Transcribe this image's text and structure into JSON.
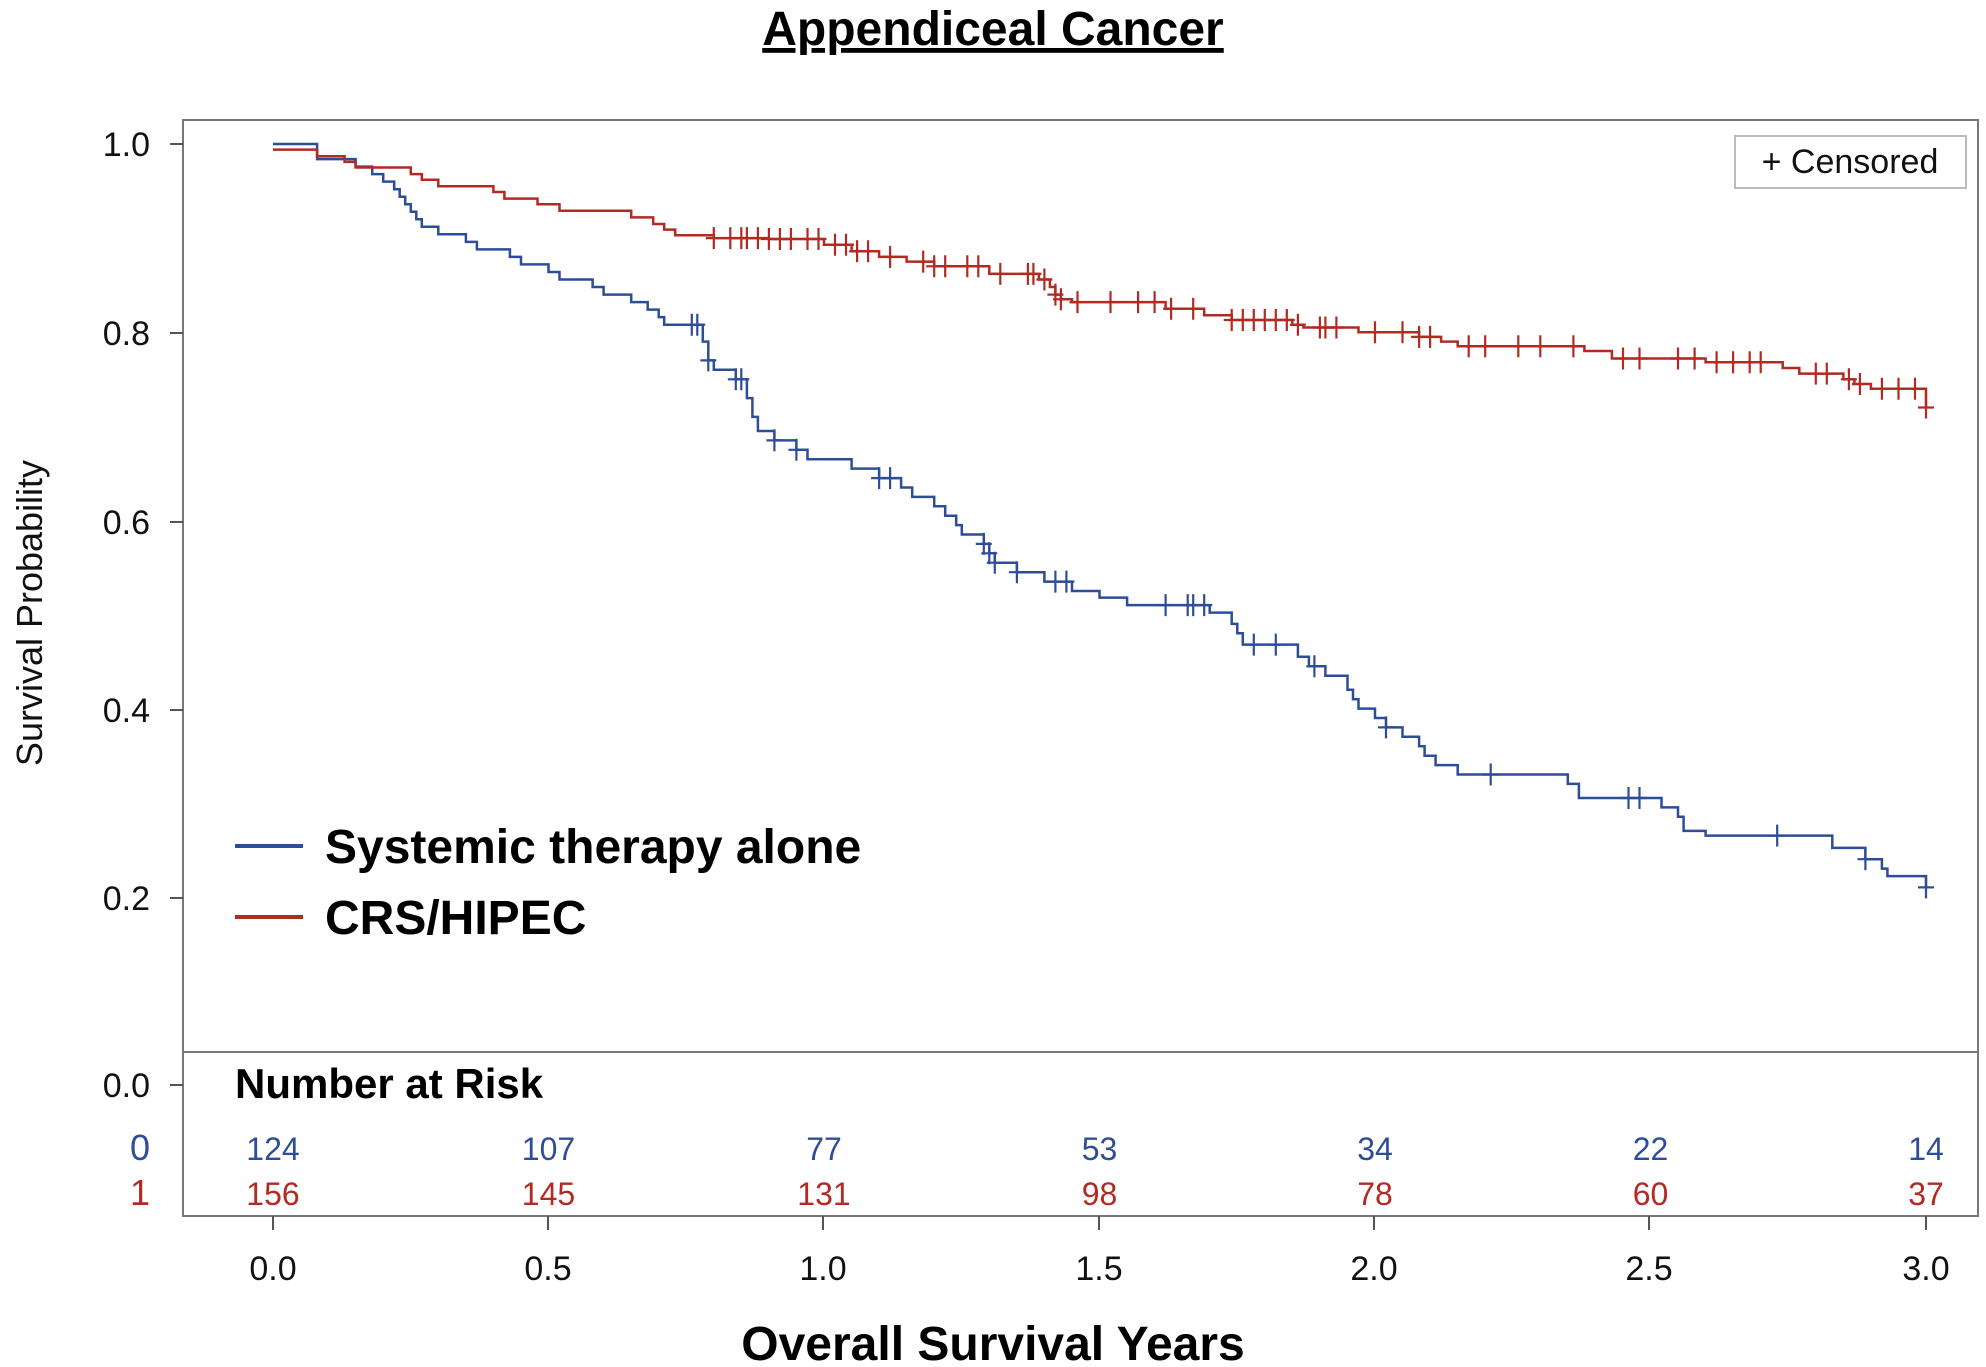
{
  "chart_data": {
    "type": "line",
    "title": "Appendiceal Cancer",
    "xlabel": "Overall Survival Years",
    "ylabel": "Survival Probability",
    "xlim": [
      0,
      3
    ],
    "ylim": [
      0,
      1
    ],
    "x_ticks": [
      "0.0",
      "0.5",
      "1.0",
      "1.5",
      "2.0",
      "2.5",
      "3.0"
    ],
    "y_ticks": [
      "1.0",
      "0.8",
      "0.6",
      "0.4",
      "0.2",
      "0.0"
    ],
    "censor_legend": "+ Censored",
    "colors": {
      "blue": "#2e4d99",
      "red": "#b22a22"
    },
    "series": [
      {
        "name": "Systemic therapy alone",
        "group_code": "0",
        "color": "#2e4d99",
        "steps": [
          [
            0,
            1.0
          ],
          [
            0.08,
            0.984
          ],
          [
            0.15,
            0.976
          ],
          [
            0.18,
            0.968
          ],
          [
            0.2,
            0.96
          ],
          [
            0.22,
            0.952
          ],
          [
            0.23,
            0.944
          ],
          [
            0.24,
            0.936
          ],
          [
            0.25,
            0.928
          ],
          [
            0.26,
            0.92
          ],
          [
            0.27,
            0.912
          ],
          [
            0.3,
            0.904
          ],
          [
            0.35,
            0.896
          ],
          [
            0.37,
            0.888
          ],
          [
            0.43,
            0.88
          ],
          [
            0.45,
            0.872
          ],
          [
            0.5,
            0.864
          ],
          [
            0.52,
            0.856
          ],
          [
            0.58,
            0.848
          ],
          [
            0.6,
            0.84
          ],
          [
            0.65,
            0.832
          ],
          [
            0.68,
            0.824
          ],
          [
            0.7,
            0.816
          ],
          [
            0.71,
            0.808
          ],
          [
            0.78,
            0.79
          ],
          [
            0.79,
            0.77
          ],
          [
            0.8,
            0.76
          ],
          [
            0.84,
            0.75
          ],
          [
            0.86,
            0.73
          ],
          [
            0.87,
            0.71
          ],
          [
            0.88,
            0.695
          ],
          [
            0.91,
            0.685
          ],
          [
            0.95,
            0.675
          ],
          [
            0.97,
            0.665
          ],
          [
            1.05,
            0.655
          ],
          [
            1.1,
            0.645
          ],
          [
            1.14,
            0.635
          ],
          [
            1.16,
            0.625
          ],
          [
            1.2,
            0.615
          ],
          [
            1.22,
            0.605
          ],
          [
            1.24,
            0.595
          ],
          [
            1.25,
            0.585
          ],
          [
            1.29,
            0.575
          ],
          [
            1.3,
            0.565
          ],
          [
            1.31,
            0.555
          ],
          [
            1.35,
            0.545
          ],
          [
            1.4,
            0.535
          ],
          [
            1.45,
            0.525
          ],
          [
            1.5,
            0.518
          ],
          [
            1.55,
            0.51
          ],
          [
            1.7,
            0.502
          ],
          [
            1.74,
            0.49
          ],
          [
            1.75,
            0.48
          ],
          [
            1.76,
            0.468
          ],
          [
            1.86,
            0.455
          ],
          [
            1.88,
            0.445
          ],
          [
            1.91,
            0.435
          ],
          [
            1.95,
            0.42
          ],
          [
            1.96,
            0.41
          ],
          [
            1.97,
            0.4
          ],
          [
            2.0,
            0.39
          ],
          [
            2.02,
            0.38
          ],
          [
            2.05,
            0.37
          ],
          [
            2.08,
            0.36
          ],
          [
            2.09,
            0.35
          ],
          [
            2.11,
            0.34
          ],
          [
            2.15,
            0.33
          ],
          [
            2.35,
            0.32
          ],
          [
            2.37,
            0.305
          ],
          [
            2.52,
            0.295
          ],
          [
            2.55,
            0.285
          ],
          [
            2.56,
            0.27
          ],
          [
            2.6,
            0.265
          ],
          [
            2.83,
            0.252
          ],
          [
            2.89,
            0.24
          ],
          [
            2.92,
            0.23
          ],
          [
            2.93,
            0.222
          ],
          [
            3.0,
            0.21
          ]
        ],
        "censored": [
          0.76,
          0.77,
          0.79,
          0.84,
          0.85,
          0.91,
          0.95,
          1.1,
          1.12,
          1.29,
          1.3,
          1.31,
          1.35,
          1.42,
          1.44,
          1.62,
          1.66,
          1.67,
          1.69,
          1.78,
          1.82,
          1.89,
          2.02,
          2.21,
          2.46,
          2.48,
          2.73,
          2.89,
          3.0
        ]
      },
      {
        "name": "CRS/HIPEC",
        "group_code": "1",
        "color": "#b22a22",
        "steps": [
          [
            0,
            0.994
          ],
          [
            0.08,
            0.987
          ],
          [
            0.13,
            0.981
          ],
          [
            0.15,
            0.975
          ],
          [
            0.25,
            0.968
          ],
          [
            0.27,
            0.962
          ],
          [
            0.3,
            0.955
          ],
          [
            0.4,
            0.949
          ],
          [
            0.42,
            0.942
          ],
          [
            0.48,
            0.936
          ],
          [
            0.52,
            0.929
          ],
          [
            0.65,
            0.922
          ],
          [
            0.69,
            0.915
          ],
          [
            0.71,
            0.909
          ],
          [
            0.73,
            0.903
          ],
          [
            0.8,
            0.9
          ],
          [
            0.9,
            0.899
          ],
          [
            1.0,
            0.893
          ],
          [
            1.05,
            0.886
          ],
          [
            1.1,
            0.88
          ],
          [
            1.15,
            0.875
          ],
          [
            1.2,
            0.87
          ],
          [
            1.3,
            0.862
          ],
          [
            1.39,
            0.856
          ],
          [
            1.41,
            0.848
          ],
          [
            1.42,
            0.84
          ],
          [
            1.43,
            0.835
          ],
          [
            1.45,
            0.832
          ],
          [
            1.62,
            0.825
          ],
          [
            1.69,
            0.818
          ],
          [
            1.74,
            0.813
          ],
          [
            1.85,
            0.808
          ],
          [
            1.87,
            0.805
          ],
          [
            1.97,
            0.8
          ],
          [
            2.08,
            0.795
          ],
          [
            2.12,
            0.79
          ],
          [
            2.15,
            0.785
          ],
          [
            2.38,
            0.78
          ],
          [
            2.43,
            0.772
          ],
          [
            2.6,
            0.768
          ],
          [
            2.74,
            0.762
          ],
          [
            2.77,
            0.756
          ],
          [
            2.85,
            0.75
          ],
          [
            2.87,
            0.745
          ],
          [
            2.9,
            0.74
          ],
          [
            3.0,
            0.72
          ]
        ],
        "censored": [
          0.8,
          0.83,
          0.85,
          0.86,
          0.88,
          0.9,
          0.92,
          0.94,
          0.97,
          0.99,
          1.02,
          1.04,
          1.06,
          1.08,
          1.12,
          1.18,
          1.2,
          1.22,
          1.26,
          1.28,
          1.32,
          1.37,
          1.38,
          1.4,
          1.42,
          1.43,
          1.46,
          1.52,
          1.57,
          1.6,
          1.63,
          1.67,
          1.74,
          1.76,
          1.78,
          1.8,
          1.82,
          1.84,
          1.86,
          1.9,
          1.91,
          1.93,
          2.0,
          2.05,
          2.08,
          2.1,
          2.17,
          2.2,
          2.26,
          2.3,
          2.36,
          2.45,
          2.48,
          2.55,
          2.58,
          2.62,
          2.65,
          2.68,
          2.7,
          2.8,
          2.82,
          2.86,
          2.88,
          2.92,
          2.95,
          2.98,
          3.0
        ]
      }
    ],
    "risk_table": {
      "title": "Number at Risk",
      "times": [
        0,
        0.5,
        1.0,
        1.5,
        2.0,
        2.5,
        3.0
      ],
      "rows": [
        {
          "label": "0",
          "color": "#2e4d99",
          "values": [
            "124",
            "107",
            "77",
            "53",
            "34",
            "22",
            "14"
          ]
        },
        {
          "label": "1",
          "color": "#b22a22",
          "values": [
            "156",
            "145",
            "131",
            "98",
            "78",
            "60",
            "37"
          ]
        }
      ]
    }
  }
}
